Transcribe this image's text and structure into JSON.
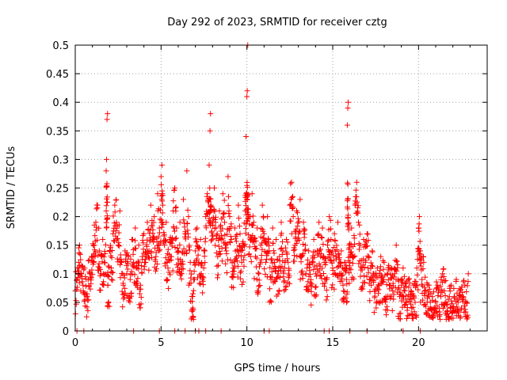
{
  "chart_data": {
    "type": "scatter",
    "title": "Day 292 of 2023, SRMTID for receiver cztg",
    "xlabel": "GPS time / hours",
    "ylabel": "SRMTID / TECUs",
    "xlim": [
      0,
      24
    ],
    "ylim": [
      0,
      0.5
    ],
    "xticks": [
      0,
      5,
      10,
      15,
      20
    ],
    "xtick_labels": [
      "0",
      "5",
      "10",
      "15",
      "20"
    ],
    "yticks": [
      0,
      0.05,
      0.1,
      0.15,
      0.2,
      0.25,
      0.3,
      0.35,
      0.4,
      0.45,
      0.5
    ],
    "ytick_labels": [
      "0",
      "0.05",
      "0.1",
      "0.15",
      "0.2",
      "0.25",
      "0.3",
      "0.35",
      "0.4",
      "0.45",
      "0.5"
    ],
    "grid": true,
    "marker": "+",
    "color": "#ff0000",
    "series": [
      {
        "name": "SRMTID",
        "points": [
          [
            0.0,
            0.07
          ],
          [
            0.1,
            0.09
          ],
          [
            0.2,
            0.12
          ],
          [
            0.25,
            0.15
          ],
          [
            0.35,
            0.1
          ],
          [
            0.45,
            0.08
          ],
          [
            0.55,
            0.11
          ],
          [
            0.65,
            0.06
          ],
          [
            0.75,
            0.09
          ],
          [
            0.85,
            0.1
          ],
          [
            0.95,
            0.13
          ],
          [
            1.05,
            0.12
          ],
          [
            1.1,
            0.15
          ],
          [
            1.2,
            0.19
          ],
          [
            1.3,
            0.22
          ],
          [
            1.4,
            0.14
          ],
          [
            1.5,
            0.1
          ],
          [
            1.6,
            0.16
          ],
          [
            1.7,
            0.12
          ],
          [
            1.8,
            0.28
          ],
          [
            1.82,
            0.3
          ],
          [
            1.85,
            0.37
          ],
          [
            1.88,
            0.38
          ],
          [
            1.9,
            0.08
          ],
          [
            2.0,
            0.14
          ],
          [
            2.1,
            0.11
          ],
          [
            2.2,
            0.17
          ],
          [
            2.3,
            0.22
          ],
          [
            2.4,
            0.19
          ],
          [
            2.5,
            0.15
          ],
          [
            2.6,
            0.21
          ],
          [
            2.7,
            0.12
          ],
          [
            2.8,
            0.08
          ],
          [
            2.9,
            0.14
          ],
          [
            3.0,
            0.1
          ],
          [
            3.1,
            0.13
          ],
          [
            3.2,
            0.09
          ],
          [
            3.3,
            0.16
          ],
          [
            3.4,
            0.12
          ],
          [
            3.5,
            0.18
          ],
          [
            3.6,
            0.11
          ],
          [
            3.7,
            0.15
          ],
          [
            3.8,
            0.08
          ],
          [
            3.9,
            0.13
          ],
          [
            4.0,
            0.17
          ],
          [
            4.1,
            0.12
          ],
          [
            4.2,
            0.19
          ],
          [
            4.3,
            0.14
          ],
          [
            4.4,
            0.22
          ],
          [
            4.5,
            0.16
          ],
          [
            4.6,
            0.2
          ],
          [
            4.7,
            0.13
          ],
          [
            4.8,
            0.24
          ],
          [
            4.9,
            0.18
          ],
          [
            5.0,
            0.27
          ],
          [
            5.05,
            0.29
          ],
          [
            5.1,
            0.22
          ],
          [
            5.2,
            0.15
          ],
          [
            5.3,
            0.19
          ],
          [
            5.4,
            0.11
          ],
          [
            5.5,
            0.16
          ],
          [
            5.6,
            0.13
          ],
          [
            5.7,
            0.21
          ],
          [
            5.8,
            0.25
          ],
          [
            5.9,
            0.18
          ],
          [
            6.0,
            0.14
          ],
          [
            6.1,
            0.19
          ],
          [
            6.2,
            0.1
          ],
          [
            6.3,
            0.23
          ],
          [
            6.4,
            0.17
          ],
          [
            6.5,
            0.28
          ],
          [
            6.6,
            0.2
          ],
          [
            6.7,
            0.12
          ],
          [
            6.8,
            0.06
          ],
          [
            6.85,
            0.04
          ],
          [
            6.9,
            0.09
          ],
          [
            7.0,
            0.14
          ],
          [
            7.1,
            0.18
          ],
          [
            7.2,
            0.12
          ],
          [
            7.3,
            0.16
          ],
          [
            7.4,
            0.09
          ],
          [
            7.5,
            0.14
          ],
          [
            7.6,
            0.2
          ],
          [
            7.7,
            0.24
          ],
          [
            7.8,
            0.29
          ],
          [
            7.85,
            0.35
          ],
          [
            7.88,
            0.38
          ],
          [
            7.9,
            0.22
          ],
          [
            8.0,
            0.19
          ],
          [
            8.1,
            0.25
          ],
          [
            8.2,
            0.18
          ],
          [
            8.3,
            0.13
          ],
          [
            8.4,
            0.21
          ],
          [
            8.5,
            0.16
          ],
          [
            8.6,
            0.24
          ],
          [
            8.7,
            0.19
          ],
          [
            8.8,
            0.14
          ],
          [
            8.9,
            0.27
          ],
          [
            9.0,
            0.2
          ],
          [
            9.1,
            0.16
          ],
          [
            9.2,
            0.11
          ],
          [
            9.3,
            0.18
          ],
          [
            9.4,
            0.13
          ],
          [
            9.5,
            0.22
          ],
          [
            9.6,
            0.17
          ],
          [
            9.7,
            0.12
          ],
          [
            9.8,
            0.15
          ],
          [
            9.9,
            0.21
          ],
          [
            9.95,
            0.34
          ],
          [
            10.0,
            0.41
          ],
          [
            10.02,
            0.42
          ],
          [
            10.05,
            0.5
          ],
          [
            10.1,
            0.2
          ],
          [
            10.2,
            0.16
          ],
          [
            10.3,
            0.24
          ],
          [
            10.4,
            0.19
          ],
          [
            10.5,
            0.13
          ],
          [
            10.6,
            0.18
          ],
          [
            10.7,
            0.1
          ],
          [
            10.8,
            0.15
          ],
          [
            10.9,
            0.22
          ],
          [
            11.0,
            0.17
          ],
          [
            11.1,
            0.12
          ],
          [
            11.2,
            0.2
          ],
          [
            11.3,
            0.14
          ],
          [
            11.4,
            0.09
          ],
          [
            11.5,
            0.18
          ],
          [
            11.6,
            0.12
          ],
          [
            11.7,
            0.16
          ],
          [
            11.8,
            0.1
          ],
          [
            11.9,
            0.13
          ],
          [
            12.0,
            0.19
          ],
          [
            12.1,
            0.14
          ],
          [
            12.2,
            0.11
          ],
          [
            12.3,
            0.16
          ],
          [
            12.4,
            0.12
          ],
          [
            12.5,
            0.22
          ],
          [
            12.6,
            0.26
          ],
          [
            12.7,
            0.2
          ],
          [
            12.8,
            0.15
          ],
          [
            12.9,
            0.21
          ],
          [
            13.0,
            0.17
          ],
          [
            13.1,
            0.23
          ],
          [
            13.2,
            0.13
          ],
          [
            13.3,
            0.19
          ],
          [
            13.4,
            0.15
          ],
          [
            13.5,
            0.11
          ],
          [
            13.6,
            0.14
          ],
          [
            13.7,
            0.08
          ],
          [
            13.8,
            0.12
          ],
          [
            13.9,
            0.16
          ],
          [
            14.0,
            0.1
          ],
          [
            14.1,
            0.14
          ],
          [
            14.2,
            0.19
          ],
          [
            14.3,
            0.13
          ],
          [
            14.4,
            0.18
          ],
          [
            14.5,
            0.12
          ],
          [
            14.6,
            0.09
          ],
          [
            14.7,
            0.15
          ],
          [
            14.8,
            0.2
          ],
          [
            14.9,
            0.16
          ],
          [
            15.0,
            0.11
          ],
          [
            15.1,
            0.17
          ],
          [
            15.2,
            0.13
          ],
          [
            15.3,
            0.19
          ],
          [
            15.4,
            0.1
          ],
          [
            15.5,
            0.14
          ],
          [
            15.6,
            0.08
          ],
          [
            15.7,
            0.12
          ],
          [
            15.8,
            0.09
          ],
          [
            15.85,
            0.36
          ],
          [
            15.88,
            0.39
          ],
          [
            15.9,
            0.4
          ],
          [
            15.95,
            0.15
          ],
          [
            16.0,
            0.12
          ],
          [
            16.1,
            0.18
          ],
          [
            16.2,
            0.13
          ],
          [
            16.3,
            0.22
          ],
          [
            16.4,
            0.26
          ],
          [
            16.5,
            0.19
          ],
          [
            16.6,
            0.15
          ],
          [
            16.7,
            0.11
          ],
          [
            16.8,
            0.16
          ],
          [
            16.9,
            0.12
          ],
          [
            17.0,
            0.17
          ],
          [
            17.1,
            0.13
          ],
          [
            17.2,
            0.09
          ],
          [
            17.3,
            0.14
          ],
          [
            17.4,
            0.1
          ],
          [
            17.5,
            0.07
          ],
          [
            17.6,
            0.11
          ],
          [
            17.7,
            0.08
          ],
          [
            17.8,
            0.13
          ],
          [
            17.9,
            0.09
          ],
          [
            18.0,
            0.12
          ],
          [
            18.1,
            0.06
          ],
          [
            18.2,
            0.1
          ],
          [
            18.3,
            0.08
          ],
          [
            18.4,
            0.11
          ],
          [
            18.5,
            0.07
          ],
          [
            18.6,
            0.1
          ],
          [
            18.7,
            0.15
          ],
          [
            18.8,
            0.09
          ],
          [
            18.9,
            0.06
          ],
          [
            19.0,
            0.08
          ],
          [
            19.1,
            0.11
          ],
          [
            19.2,
            0.07
          ],
          [
            19.3,
            0.05
          ],
          [
            19.4,
            0.09
          ],
          [
            19.5,
            0.06
          ],
          [
            19.6,
            0.04
          ],
          [
            19.7,
            0.08
          ],
          [
            19.8,
            0.05
          ],
          [
            19.9,
            0.11
          ],
          [
            20.0,
            0.18
          ],
          [
            20.05,
            0.2
          ],
          [
            20.1,
            0.14
          ],
          [
            20.2,
            0.09
          ],
          [
            20.3,
            0.12
          ],
          [
            20.4,
            0.07
          ],
          [
            20.5,
            0.05
          ],
          [
            20.6,
            0.08
          ],
          [
            20.7,
            0.04
          ],
          [
            20.8,
            0.06
          ],
          [
            20.9,
            0.03
          ],
          [
            21.0,
            0.05
          ],
          [
            21.1,
            0.08
          ],
          [
            21.2,
            0.04
          ],
          [
            21.3,
            0.06
          ],
          [
            21.4,
            0.1
          ],
          [
            21.5,
            0.07
          ],
          [
            21.6,
            0.05
          ],
          [
            21.7,
            0.03
          ],
          [
            21.8,
            0.06
          ],
          [
            21.9,
            0.08
          ],
          [
            22.0,
            0.04
          ],
          [
            22.1,
            0.06
          ],
          [
            22.2,
            0.09
          ],
          [
            22.3,
            0.05
          ],
          [
            22.4,
            0.07
          ],
          [
            22.5,
            0.04
          ],
          [
            22.6,
            0.06
          ],
          [
            22.7,
            0.08
          ],
          [
            22.8,
            0.05
          ],
          [
            22.9,
            0.1
          ]
        ]
      }
    ],
    "zero_markers_x": [
      0.1,
      0.5,
      3.4,
      4.9,
      5.8,
      6.4,
      7.0,
      7.2,
      7.6,
      8.5,
      11.0,
      11.3,
      14.5,
      14.8,
      16.0,
      17.0,
      19.1,
      20.1
    ]
  }
}
